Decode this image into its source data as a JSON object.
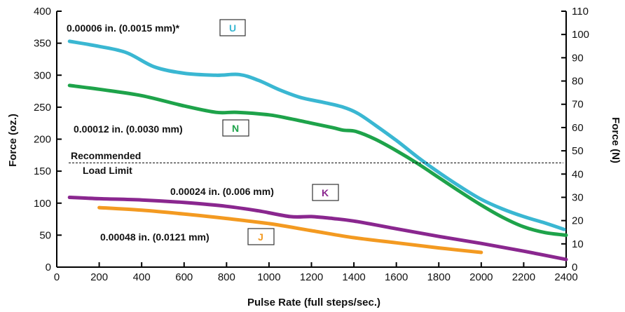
{
  "chart_data": {
    "type": "line",
    "xlabel": "Pulse Rate (full steps/sec.)",
    "ylabel": "Force (oz.)",
    "y2label": "Force (N)",
    "xlim": [
      0,
      2400
    ],
    "ylim": [
      0,
      400
    ],
    "y2lim": [
      0,
      110
    ],
    "x_ticks": [
      0,
      200,
      400,
      600,
      800,
      1000,
      1200,
      1400,
      1600,
      1800,
      2000,
      2200,
      2400
    ],
    "y_ticks": [
      0,
      50,
      100,
      150,
      200,
      250,
      300,
      350,
      400
    ],
    "y2_ticks": [
      0,
      10,
      20,
      30,
      40,
      50,
      60,
      70,
      80,
      90,
      100,
      110
    ],
    "reference_line": {
      "y": 163,
      "label_line1": "Recommended",
      "label_line2": "Load Limit"
    },
    "grid": false,
    "series": [
      {
        "name": "U",
        "label": "0.00006 in. (0.0015 mm)*",
        "color": "#3ab7d2",
        "x": [
          60,
          200,
          330,
          460,
          600,
          750,
          860,
          950,
          1050,
          1150,
          1250,
          1350,
          1420,
          1500,
          1600,
          1700,
          1800,
          1900,
          2000,
          2100,
          2200,
          2300,
          2390
        ],
        "y": [
          353,
          345,
          335,
          313,
          303,
          300,
          301,
          292,
          277,
          265,
          258,
          250,
          240,
          222,
          198,
          172,
          148,
          126,
          106,
          91,
          79,
          69,
          59
        ]
      },
      {
        "name": "N",
        "label": "0.00012 in. (0.0030 mm)",
        "color": "#1ea34a",
        "x": [
          60,
          200,
          400,
          600,
          750,
          850,
          1000,
          1100,
          1200,
          1300,
          1350,
          1410,
          1500,
          1600,
          1700,
          1800,
          1900,
          2000,
          2100,
          2200,
          2300,
          2400
        ],
        "y": [
          284,
          278,
          268,
          252,
          242,
          242,
          238,
          232,
          225,
          218,
          214,
          212,
          200,
          182,
          162,
          140,
          118,
          97,
          78,
          63,
          54,
          50
        ]
      },
      {
        "name": "K",
        "label": "0.00024 in. (0.006 mm)",
        "color": "#8a278f",
        "x": [
          60,
          200,
          400,
          600,
          800,
          950,
          1100,
          1200,
          1300,
          1400,
          1600,
          1800,
          2000,
          2200,
          2400
        ],
        "y": [
          109,
          107,
          105,
          101,
          95,
          88,
          79,
          79,
          76,
          72,
          60,
          48,
          37,
          25,
          12
        ]
      },
      {
        "name": "J",
        "label": "0.00048 in. (0.0121 mm)",
        "color": "#f39a21",
        "x": [
          200,
          400,
          600,
          800,
          1000,
          1200,
          1400,
          1600,
          1800,
          2000
        ],
        "y": [
          93,
          89,
          83,
          76,
          68,
          57,
          46,
          38,
          30,
          23
        ]
      }
    ]
  }
}
